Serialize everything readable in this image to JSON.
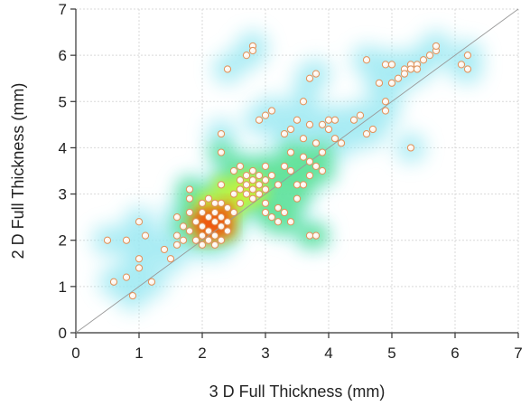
{
  "chart_data": {
    "type": "scatter",
    "title": "",
    "xlabel": "3 D Full Thickness (mm)",
    "ylabel": "2 D Full Thickness (mm)",
    "xlim": [
      0,
      7
    ],
    "ylim": [
      0,
      7
    ],
    "xticks": [
      "0",
      "1",
      "2",
      "3",
      "4",
      "5",
      "6",
      "7"
    ],
    "yticks": [
      "0",
      "1",
      "2",
      "3",
      "4",
      "5",
      "6",
      "7"
    ],
    "grid": true,
    "identity_line": true,
    "density_overlay": true,
    "colors": {
      "point_fill_core": "#ffffff",
      "point_fill_outer": "#fdf5ec",
      "point_edge": "#e0915a",
      "identity_line": "#999999",
      "grid": "#d9d9d9",
      "density_low": "#9ae8f2",
      "density_mid": "#ffff00",
      "density_high": "#ff2000"
    },
    "points": [
      [
        0.5,
        2.0
      ],
      [
        0.6,
        1.1
      ],
      [
        0.8,
        2.0
      ],
      [
        0.8,
        1.2
      ],
      [
        0.9,
        0.8
      ],
      [
        1.0,
        2.4
      ],
      [
        1.0,
        1.4
      ],
      [
        1.0,
        1.6
      ],
      [
        1.1,
        2.1
      ],
      [
        1.2,
        1.1
      ],
      [
        1.4,
        1.8
      ],
      [
        1.5,
        1.6
      ],
      [
        1.6,
        1.9
      ],
      [
        1.6,
        2.1
      ],
      [
        1.6,
        2.5
      ],
      [
        1.7,
        2.3
      ],
      [
        1.7,
        2.0
      ],
      [
        1.8,
        3.1
      ],
      [
        1.8,
        2.9
      ],
      [
        1.8,
        2.6
      ],
      [
        1.8,
        2.2
      ],
      [
        1.9,
        2.4
      ],
      [
        1.9,
        2.0
      ],
      [
        2.0,
        2.8
      ],
      [
        2.0,
        2.6
      ],
      [
        2.0,
        2.3
      ],
      [
        2.0,
        2.1
      ],
      [
        2.0,
        1.9
      ],
      [
        2.1,
        2.9
      ],
      [
        2.1,
        2.5
      ],
      [
        2.1,
        2.2
      ],
      [
        2.1,
        2.0
      ],
      [
        2.2,
        2.8
      ],
      [
        2.2,
        2.6
      ],
      [
        2.2,
        2.4
      ],
      [
        2.2,
        2.1
      ],
      [
        2.2,
        1.9
      ],
      [
        2.3,
        3.2
      ],
      [
        2.3,
        2.8
      ],
      [
        2.3,
        2.5
      ],
      [
        2.3,
        2.3
      ],
      [
        2.3,
        2.0
      ],
      [
        2.3,
        4.3
      ],
      [
        2.3,
        3.9
      ],
      [
        2.4,
        2.7
      ],
      [
        2.4,
        2.4
      ],
      [
        2.4,
        2.2
      ],
      [
        2.4,
        5.7
      ],
      [
        2.5,
        3.5
      ],
      [
        2.5,
        3.0
      ],
      [
        2.5,
        2.6
      ],
      [
        2.6,
        3.6
      ],
      [
        2.6,
        3.3
      ],
      [
        2.6,
        3.1
      ],
      [
        2.6,
        2.8
      ],
      [
        2.7,
        6.0
      ],
      [
        2.7,
        3.4
      ],
      [
        2.7,
        3.2
      ],
      [
        2.7,
        3.0
      ],
      [
        2.8,
        6.2
      ],
      [
        2.8,
        6.1
      ],
      [
        2.8,
        3.5
      ],
      [
        2.8,
        3.3
      ],
      [
        2.8,
        3.1
      ],
      [
        2.8,
        2.9
      ],
      [
        2.9,
        3.4
      ],
      [
        2.9,
        3.2
      ],
      [
        2.9,
        3.0
      ],
      [
        2.9,
        4.6
      ],
      [
        3.0,
        4.7
      ],
      [
        3.0,
        3.3
      ],
      [
        3.0,
        3.1
      ],
      [
        3.0,
        2.8
      ],
      [
        3.0,
        3.6
      ],
      [
        3.0,
        2.6
      ],
      [
        3.1,
        4.8
      ],
      [
        3.1,
        2.5
      ],
      [
        3.1,
        3.4
      ],
      [
        3.2,
        2.7
      ],
      [
        3.2,
        2.4
      ],
      [
        3.2,
        3.2
      ],
      [
        3.3,
        4.3
      ],
      [
        3.3,
        3.6
      ],
      [
        3.3,
        2.6
      ],
      [
        3.4,
        4.4
      ],
      [
        3.4,
        3.9
      ],
      [
        3.4,
        3.5
      ],
      [
        3.4,
        2.4
      ],
      [
        3.5,
        4.6
      ],
      [
        3.5,
        3.2
      ],
      [
        3.5,
        2.9
      ],
      [
        3.6,
        5.0
      ],
      [
        3.6,
        4.2
      ],
      [
        3.6,
        3.8
      ],
      [
        3.6,
        3.2
      ],
      [
        3.7,
        5.5
      ],
      [
        3.7,
        4.5
      ],
      [
        3.7,
        3.7
      ],
      [
        3.7,
        3.4
      ],
      [
        3.7,
        2.1
      ],
      [
        3.8,
        5.6
      ],
      [
        3.8,
        4.1
      ],
      [
        3.8,
        3.6
      ],
      [
        3.8,
        2.1
      ],
      [
        3.9,
        4.5
      ],
      [
        3.9,
        3.9
      ],
      [
        3.9,
        3.5
      ],
      [
        4.0,
        4.6
      ],
      [
        4.0,
        4.4
      ],
      [
        4.1,
        4.6
      ],
      [
        4.1,
        4.2
      ],
      [
        4.2,
        4.1
      ],
      [
        4.4,
        4.6
      ],
      [
        4.5,
        4.7
      ],
      [
        4.6,
        5.9
      ],
      [
        4.6,
        4.3
      ],
      [
        4.7,
        4.4
      ],
      [
        4.8,
        5.4
      ],
      [
        4.9,
        5.8
      ],
      [
        4.9,
        4.8
      ],
      [
        4.9,
        5.0
      ],
      [
        5.0,
        5.4
      ],
      [
        5.0,
        5.8
      ],
      [
        5.1,
        5.5
      ],
      [
        5.2,
        5.7
      ],
      [
        5.2,
        5.6
      ],
      [
        5.3,
        5.8
      ],
      [
        5.3,
        4.0
      ],
      [
        5.3,
        5.7
      ],
      [
        5.4,
        5.8
      ],
      [
        5.4,
        5.7
      ],
      [
        5.5,
        5.9
      ],
      [
        5.6,
        6.0
      ],
      [
        5.7,
        6.1
      ],
      [
        5.7,
        6.2
      ],
      [
        6.1,
        5.8
      ],
      [
        6.2,
        5.7
      ],
      [
        6.2,
        6.0
      ]
    ]
  }
}
